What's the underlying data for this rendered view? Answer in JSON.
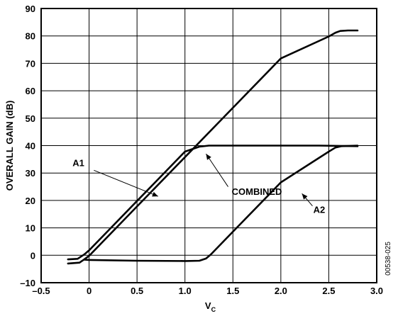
{
  "chart_data": {
    "type": "line",
    "title": "",
    "xlabel": "V",
    "xlabel_subscript": "C",
    "ylabel": "OVERALL GAIN (dB)",
    "xlim": [
      -0.5,
      3.0
    ],
    "ylim": [
      -10,
      90
    ],
    "xticks": [
      -0.5,
      0,
      0.5,
      1.0,
      1.5,
      2.0,
      2.5,
      3.0
    ],
    "xtick_labels": [
      "–0.5",
      "0",
      "0.5",
      "1.0",
      "1.5",
      "2.0",
      "2.5",
      "3.0"
    ],
    "yticks": [
      -10,
      0,
      10,
      20,
      30,
      40,
      50,
      60,
      70,
      80,
      90
    ],
    "ytick_labels": [
      "–10",
      "0",
      "10",
      "20",
      "30",
      "40",
      "50",
      "60",
      "70",
      "80",
      "90"
    ],
    "grid": true,
    "legend": "none",
    "series": [
      {
        "name": "A1",
        "x": [
          -0.22,
          -0.12,
          -0.05,
          0.0,
          0.2,
          0.5,
          0.8,
          1.0,
          1.15,
          1.25,
          1.3,
          1.6,
          2.0,
          2.4,
          2.8
        ],
        "y": [
          -1.5,
          -1.3,
          0.3,
          1.8,
          9.0,
          19.8,
          30.6,
          37.8,
          39.6,
          40.0,
          40.0,
          40.0,
          40.0,
          40.0,
          39.8
        ]
      },
      {
        "name": "COMBINED",
        "x": [
          -0.22,
          -0.1,
          -0.05,
          0.0,
          0.5,
          1.0,
          1.5,
          2.0,
          2.5,
          2.57,
          2.62,
          2.7,
          2.8
        ],
        "y": [
          -3.0,
          -2.7,
          -1.5,
          -0.2,
          17.8,
          35.8,
          53.8,
          71.8,
          79.8,
          81.2,
          81.8,
          82.0,
          82.0
        ]
      },
      {
        "name": "A2",
        "x": [
          -0.05,
          0.0,
          0.5,
          1.0,
          1.15,
          1.22,
          1.27,
          1.5,
          2.0,
          2.5,
          2.57,
          2.63,
          2.8
        ],
        "y": [
          -1.6,
          -1.7,
          -2.0,
          -2.1,
          -2.0,
          -1.2,
          0.3,
          8.6,
          26.6,
          37.8,
          39.3,
          39.8,
          40.0
        ]
      }
    ],
    "annotations": [
      {
        "text": "A1",
        "series": "A1"
      },
      {
        "text": "COMBINED",
        "series": "COMBINED"
      },
      {
        "text": "A2",
        "series": "A2"
      }
    ],
    "figure_id": "00538-025"
  }
}
